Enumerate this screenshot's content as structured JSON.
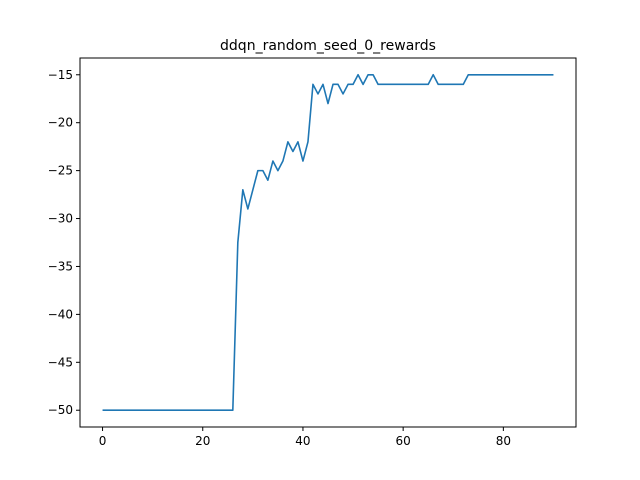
{
  "chart_data": {
    "type": "line",
    "title": "ddqn_random_seed_0_rewards",
    "xlabel": "",
    "ylabel": "",
    "xlim": [
      -4.5,
      94.5
    ],
    "ylim": [
      -51.75,
      -13.25
    ],
    "x_ticks": [
      0,
      20,
      40,
      60,
      80
    ],
    "y_ticks": [
      -50,
      -45,
      -40,
      -35,
      -30,
      -25,
      -20,
      -15
    ],
    "x_tick_labels": [
      "0",
      "20",
      "40",
      "60",
      "80"
    ],
    "y_tick_labels": [
      "−50",
      "−45",
      "−40",
      "−35",
      "−30",
      "−25",
      "−20",
      "−15"
    ],
    "grid": false,
    "series": [
      {
        "color": "#1f77b4",
        "x": [
          0,
          1,
          2,
          3,
          4,
          5,
          6,
          7,
          8,
          9,
          10,
          11,
          12,
          13,
          14,
          15,
          16,
          17,
          18,
          19,
          20,
          21,
          22,
          23,
          24,
          25,
          26,
          27,
          28,
          29,
          30,
          31,
          32,
          33,
          34,
          35,
          36,
          37,
          38,
          39,
          40,
          41,
          42,
          43,
          44,
          45,
          46,
          47,
          48,
          49,
          50,
          51,
          52,
          53,
          54,
          55,
          56,
          57,
          58,
          59,
          60,
          61,
          62,
          63,
          64,
          65,
          66,
          67,
          68,
          69,
          70,
          71,
          72,
          73,
          74,
          75,
          76,
          77,
          78,
          79,
          80,
          81,
          82,
          83,
          84,
          85,
          86,
          87,
          88,
          89,
          90
        ],
        "values": [
          -50,
          -50,
          -50,
          -50,
          -50,
          -50,
          -50,
          -50,
          -50,
          -50,
          -50,
          -50,
          -50,
          -50,
          -50,
          -50,
          -50,
          -50,
          -50,
          -50,
          -50,
          -50,
          -50,
          -50,
          -50,
          -50,
          -50,
          -32.5,
          -27,
          -29,
          -27,
          -25,
          -25,
          -26,
          -24,
          -25,
          -24,
          -22,
          -23,
          -22,
          -24,
          -22,
          -16,
          -17,
          -16,
          -18,
          -16,
          -16,
          -17,
          -16,
          -16,
          -15,
          -16,
          -15,
          -15,
          -16,
          -16,
          -16,
          -16,
          -16,
          -16,
          -16,
          -16,
          -16,
          -16,
          -16,
          -15,
          -16,
          -16,
          -16,
          -16,
          -16,
          -16,
          -15,
          -15,
          -15,
          -15,
          -15,
          -15,
          -15,
          -15,
          -15,
          -15,
          -15,
          -15,
          -15,
          -15,
          -15,
          -15,
          -15,
          -15
        ]
      }
    ]
  }
}
